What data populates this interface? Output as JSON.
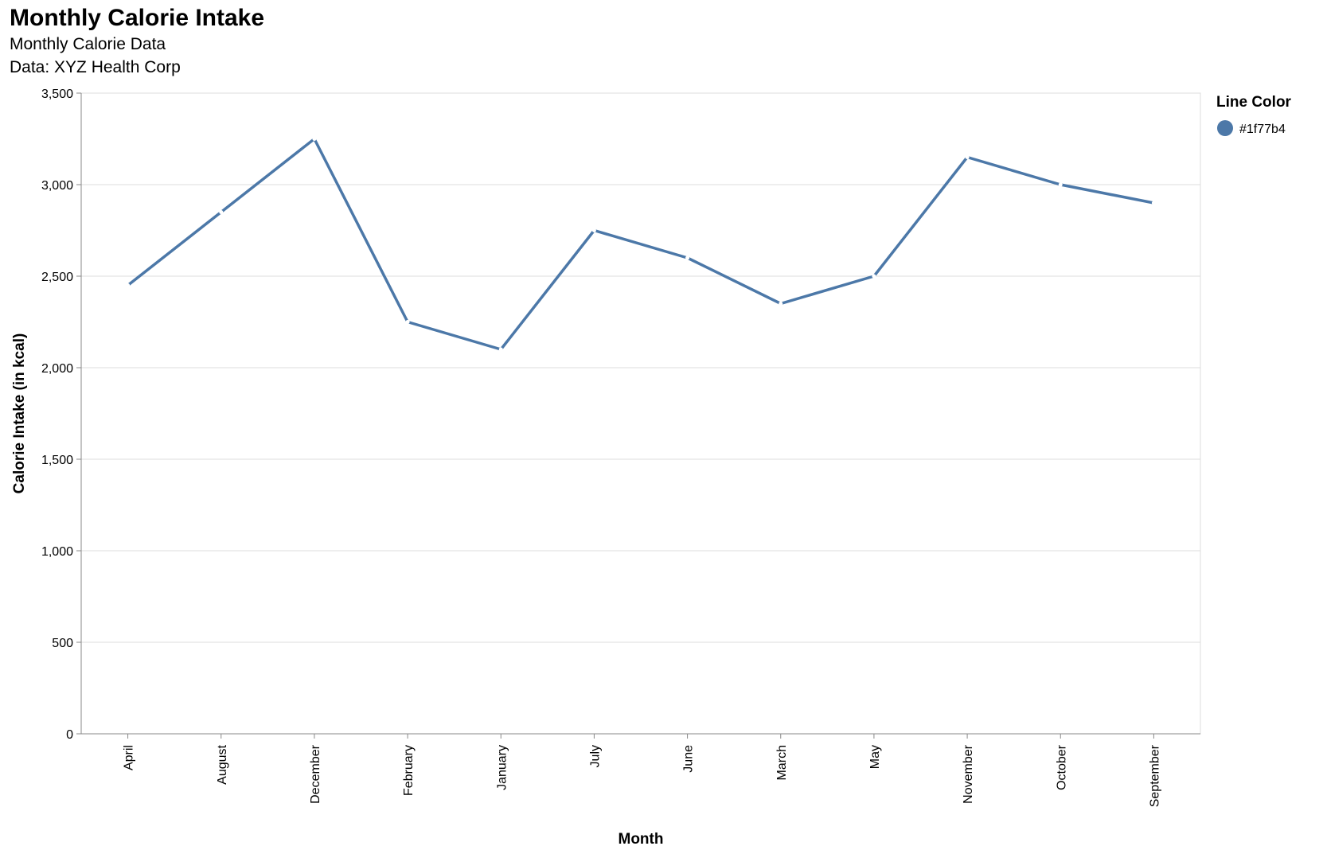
{
  "chart_data": {
    "type": "line",
    "title": "Monthly Calorie Intake",
    "subtitle": [
      "Monthly Calorie Data",
      "Data: XYZ Health Corp"
    ],
    "xlabel": "Month",
    "ylabel": "Calorie Intake (in kcal)",
    "categories": [
      "April",
      "August",
      "December",
      "February",
      "January",
      "July",
      "June",
      "March",
      "May",
      "November",
      "October",
      "September"
    ],
    "values": [
      2450,
      2850,
      3250,
      2250,
      2100,
      2750,
      2600,
      2350,
      2500,
      3150,
      3000,
      2900
    ],
    "ylim": [
      0,
      3500
    ],
    "yticks": [
      0,
      500,
      1000,
      1500,
      2000,
      2500,
      3000,
      3500
    ],
    "ytick_labels": [
      "0",
      "500",
      "1,000",
      "1,500",
      "2,000",
      "2,500",
      "3,000",
      "3,500"
    ],
    "grid": true,
    "legend": {
      "title": "Line Color",
      "placement": "top-right",
      "entries": [
        {
          "label": "#1f77b4",
          "color": "#4c78a8"
        }
      ]
    },
    "line_color": "#4c78a8"
  }
}
